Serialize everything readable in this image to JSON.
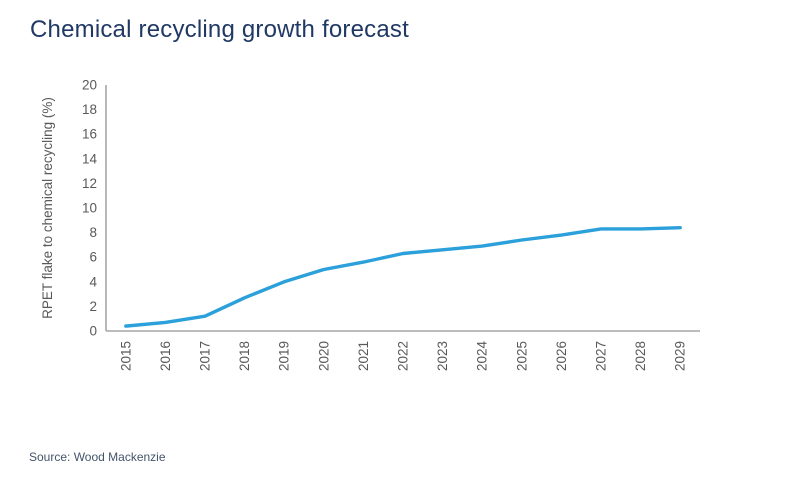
{
  "page": {
    "title": "Chemical recycling growth forecast",
    "source": "Source: Wood Mackenzie"
  },
  "colors": {
    "title_text": "#1F3864",
    "line": "#2BA0DA",
    "axis_line": "#A6A6A6",
    "tick_text": "#595959",
    "axis_label_text": "#595959",
    "source_text": "#44546A",
    "background": "#FFFFFF"
  },
  "chart_data": {
    "type": "line",
    "title": "Chemical recycling growth forecast",
    "xlabel": "",
    "ylabel": "RPET flake to chemical recycling (%)",
    "categories": [
      "2015",
      "2016",
      "2017",
      "2018",
      "2019",
      "2020",
      "2021",
      "2022",
      "2023",
      "2024",
      "2025",
      "2026",
      "2027",
      "2028",
      "2029"
    ],
    "series": [
      {
        "name": "RPET flake to chemical recycling (%)",
        "values": [
          0.4,
          0.7,
          1.2,
          2.7,
          4.0,
          5.0,
          5.6,
          6.3,
          6.6,
          6.9,
          7.4,
          7.8,
          8.3,
          8.3,
          8.4
        ]
      }
    ],
    "ylim": [
      0,
      20
    ],
    "ytick_step": 2,
    "grid": false,
    "legend_position": "none",
    "markers": false,
    "x_tick_rotation_deg": -90
  }
}
